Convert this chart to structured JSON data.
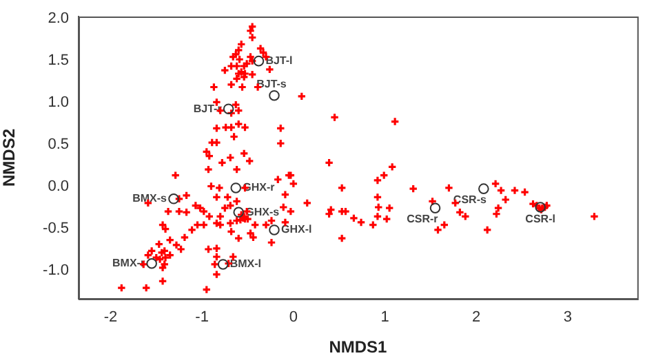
{
  "chart_data": {
    "type": "scatter",
    "xlabel": "NMDS1",
    "ylabel": "NMDS2",
    "xlim": [
      -2.35,
      3.76
    ],
    "ylim": [
      -1.34,
      2.02
    ],
    "xticks": [
      -2,
      -1,
      0,
      1,
      2,
      3
    ],
    "yticks": [
      {
        "value": -1,
        "label": "-1.0"
      },
      -0.5,
      {
        "value": 0,
        "label": "0.0"
      },
      0.5,
      {
        "value": 1,
        "label": "1.0"
      },
      1.5,
      {
        "value": 2,
        "label": "2.0"
      }
    ],
    "grid": false,
    "legend": false,
    "series": [
      {
        "color": "#ff0000",
        "marker": "cross",
        "x": [
          -0.45,
          -0.47,
          -0.45,
          -0.57,
          -0.6,
          -0.63,
          -0.66,
          -0.36,
          -0.33,
          -0.3,
          -0.59,
          -0.47,
          -0.45,
          -0.51,
          -0.54,
          -0.62,
          -0.68,
          -0.75,
          -0.57,
          -0.53,
          -0.45,
          -0.6,
          -0.26,
          -0.54,
          -0.62,
          -0.87,
          -0.68,
          -0.56,
          -0.39,
          0.09,
          -0.84,
          -0.8,
          -0.63,
          -0.6,
          -0.68,
          -0.84,
          -0.74,
          -0.68,
          -0.6,
          -0.53,
          -0.14,
          -0.65,
          -0.89,
          -0.84,
          -0.14,
          -0.95,
          -0.92,
          -0.54,
          -0.69,
          -0.78,
          -0.48,
          -0.93,
          -0.62,
          -1.29,
          0.39,
          0.45,
          1.11,
          1.08,
          0.99,
          -0.05,
          -0.9,
          -0.81,
          -0.53,
          -0.17,
          -0.03,
          0.0,
          0.15,
          0.39,
          -1.17,
          -1.25,
          -1.59,
          -0.84,
          -0.72,
          -0.62,
          -0.69,
          -1.37,
          -1.25,
          -1.17,
          -1.07,
          -1.02,
          -0.98,
          -0.92,
          -0.8,
          -0.75,
          -0.51,
          -0.57,
          -0.54,
          -0.53,
          -0.5,
          -0.62,
          -0.69,
          -0.84,
          -0.8,
          -0.98,
          -1.05,
          -0.42,
          -0.3,
          -0.24,
          -0.03,
          -0.11,
          -0.68,
          -1.43,
          -1.4,
          -1.11,
          -1.19,
          -0.47,
          -0.44,
          -0.6,
          -0.24,
          -1.35,
          -1.47,
          -1.28,
          -1.23,
          -1.41,
          -1.44,
          -1.55,
          -1.35,
          -1.4,
          -1.46,
          -1.5,
          -1.59,
          -1.64,
          -1.41,
          -1.43,
          -1.43,
          -0.93,
          -0.84,
          -0.84,
          -0.66,
          -0.86,
          -0.71,
          -0.84,
          -1.88,
          -1.61,
          -0.95,
          -0.55,
          -0.58,
          -0.09,
          -0.09,
          0.53,
          0.41,
          0.53,
          0.57,
          0.53,
          0.66,
          0.74,
          0.87,
          0.92,
          0.92,
          0.93,
          1.05,
          0.92,
          1.02,
          1.31,
          1.52,
          1.65,
          1.58,
          1.7,
          1.77,
          1.82,
          1.88,
          2.12,
          2.21,
          2.27,
          2.32,
          2.24,
          2.22,
          2.42,
          2.53,
          2.62,
          2.66,
          2.69,
          2.72,
          2.75,
          2.77,
          2.71,
          3.29
        ],
        "values": [
          1.9,
          1.85,
          1.77,
          1.69,
          1.62,
          1.57,
          1.54,
          1.64,
          1.59,
          1.54,
          1.51,
          1.54,
          1.49,
          1.46,
          1.43,
          1.43,
          1.43,
          1.38,
          1.36,
          1.34,
          1.33,
          1.34,
          1.39,
          1.3,
          1.28,
          1.18,
          1.21,
          1.18,
          1.18,
          1.07,
          1.0,
          0.9,
          0.97,
          0.9,
          0.87,
          0.69,
          0.7,
          0.7,
          0.74,
          0.7,
          0.69,
          0.59,
          0.52,
          0.52,
          0.51,
          0.41,
          0.36,
          0.39,
          0.34,
          0.28,
          0.3,
          0.2,
          0.2,
          0.13,
          0.28,
          0.82,
          0.77,
          0.23,
          0.13,
          0.13,
          0.0,
          -0.02,
          -0.02,
          0.08,
          0.13,
          0.03,
          -0.2,
          -0.33,
          -0.11,
          -0.15,
          -0.2,
          -0.13,
          -0.13,
          -0.18,
          -0.23,
          -0.3,
          -0.3,
          -0.31,
          -0.23,
          -0.26,
          -0.3,
          -0.36,
          -0.36,
          -0.26,
          -0.3,
          -0.34,
          -0.36,
          -0.39,
          -0.39,
          -0.41,
          -0.44,
          -0.44,
          -0.46,
          -0.46,
          -0.46,
          -0.46,
          -0.46,
          -0.41,
          -0.3,
          -0.25,
          -0.54,
          -0.46,
          -0.51,
          -0.52,
          -0.61,
          -0.56,
          -0.61,
          -0.62,
          -0.67,
          -0.64,
          -0.69,
          -0.7,
          -0.75,
          -0.77,
          -0.79,
          -0.77,
          -0.82,
          -0.85,
          -0.87,
          -0.85,
          -0.82,
          -0.93,
          -0.93,
          -0.97,
          -1.13,
          -0.75,
          -0.74,
          -0.84,
          -0.84,
          -0.93,
          -0.92,
          -1.05,
          -1.21,
          -1.21,
          -1.23,
          -0.38,
          -0.4,
          -0.1,
          -0.43,
          -0.02,
          -0.28,
          -0.3,
          -0.3,
          -0.62,
          -0.38,
          -0.43,
          -0.46,
          0.07,
          -0.13,
          -0.25,
          -0.26,
          -0.36,
          -0.39,
          -0.03,
          -0.18,
          -0.46,
          -0.52,
          -0.02,
          -0.2,
          -0.31,
          -0.36,
          -0.52,
          0.03,
          -0.05,
          -0.16,
          -0.26,
          -0.33,
          -0.05,
          -0.07,
          -0.21,
          -0.23,
          -0.26,
          -0.26,
          -0.25,
          -0.23,
          -0.28,
          -0.36
        ]
      },
      {
        "color": "#333333",
        "marker": "circle",
        "x": [
          -0.38,
          -0.21,
          -0.71,
          -0.63,
          -1.31,
          -0.6,
          -0.21,
          -1.55,
          -0.77,
          2.08,
          1.55,
          2.7
        ],
        "values": [
          1.49,
          1.08,
          0.92,
          -0.02,
          -0.15,
          -0.31,
          -0.52,
          -0.92,
          -0.93,
          -0.03,
          -0.26,
          -0.25
        ]
      }
    ],
    "annotations": [
      {
        "text": "BJT-l",
        "x": -0.38,
        "y": 1.49
      },
      {
        "text": "BJT-s",
        "x": -0.21,
        "y": 1.08
      },
      {
        "text": "BJT-r",
        "x": -0.71,
        "y": 0.92
      },
      {
        "text": "GHX-r",
        "x": -0.63,
        "y": -0.02
      },
      {
        "text": "BMX-s",
        "x": -1.31,
        "y": -0.15
      },
      {
        "text": "GHX-s",
        "x": -0.6,
        "y": -0.31
      },
      {
        "text": "GHX-l",
        "x": -0.21,
        "y": -0.52
      },
      {
        "text": "BMX-r",
        "x": -1.55,
        "y": -0.92
      },
      {
        "text": "BMX-l",
        "x": -0.77,
        "y": -0.93
      },
      {
        "text": "CSR-s",
        "x": 2.08,
        "y": -0.03
      },
      {
        "text": "CSR-r",
        "x": 1.55,
        "y": -0.26
      },
      {
        "text": "CSR-l",
        "x": 2.7,
        "y": -0.25
      }
    ]
  }
}
